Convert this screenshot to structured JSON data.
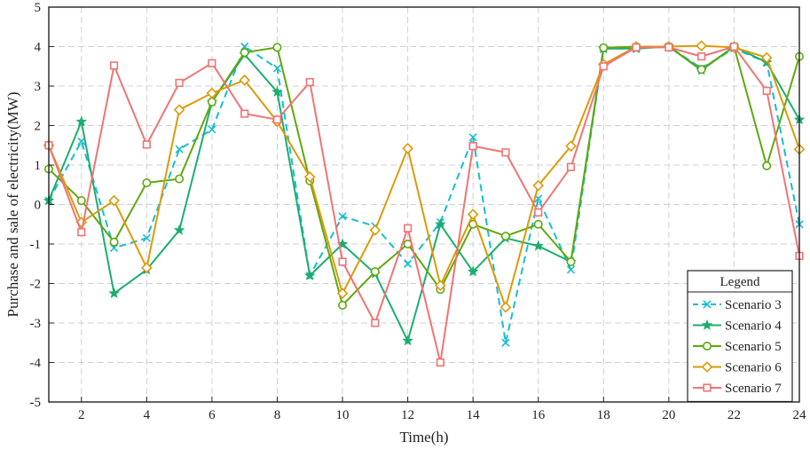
{
  "chart_data": {
    "type": "line",
    "title": "",
    "xlabel": "Time(h)",
    "ylabel": "Purchase and sale of electricity(MW)",
    "xlim": [
      1,
      24
    ],
    "ylim": [
      -5,
      5
    ],
    "xticks": [
      2,
      4,
      6,
      8,
      10,
      12,
      14,
      16,
      18,
      20,
      22,
      24
    ],
    "yticks": [
      -5,
      -4,
      -3,
      -2,
      -1,
      0,
      1,
      2,
      3,
      4,
      5
    ],
    "grid": true,
    "x": [
      1,
      2,
      3,
      4,
      5,
      6,
      7,
      8,
      9,
      10,
      11,
      12,
      13,
      14,
      15,
      16,
      17,
      18,
      19,
      20,
      21,
      22,
      23,
      24
    ],
    "legend": {
      "title": "Legend",
      "position": "bottom-right"
    },
    "series": [
      {
        "name": "Scenario 3",
        "color": "#17becf",
        "dash": "dashed",
        "marker": "x",
        "values": [
          0.1,
          1.6,
          -1.1,
          -0.85,
          1.4,
          1.9,
          4.0,
          3.45,
          -1.8,
          -0.3,
          -0.55,
          -1.5,
          -0.45,
          1.7,
          -3.5,
          0.15,
          -1.65,
          3.95,
          3.95,
          4.0,
          3.45,
          3.95,
          3.6,
          -0.5
        ]
      },
      {
        "name": "Scenario 4",
        "color": "#1cae6f",
        "dash": "solid",
        "marker": "star",
        "values": [
          0.1,
          2.1,
          -2.25,
          -1.65,
          -0.65,
          2.6,
          3.8,
          2.85,
          -1.8,
          -1.0,
          -1.75,
          -3.45,
          -0.5,
          -1.7,
          -0.85,
          -1.05,
          -1.45,
          3.95,
          3.95,
          4.0,
          3.4,
          4.0,
          3.6,
          2.15
        ]
      },
      {
        "name": "Scenario 5",
        "color": "#5fa80f",
        "dash": "solid",
        "marker": "circle",
        "values": [
          0.9,
          0.1,
          -0.95,
          0.55,
          0.65,
          2.6,
          3.85,
          3.98,
          0.6,
          -2.55,
          -1.7,
          -1.0,
          -2.15,
          -0.5,
          -0.8,
          -0.5,
          -1.45,
          3.97,
          4.0,
          4.0,
          3.42,
          4.0,
          0.98,
          3.75
        ]
      },
      {
        "name": "Scenario 6",
        "color": "#dc9a0a",
        "dash": "solid",
        "marker": "diamond",
        "values": [
          1.5,
          -0.45,
          0.1,
          -1.6,
          2.4,
          2.82,
          3.15,
          2.1,
          0.7,
          -2.25,
          -0.65,
          1.42,
          -2.05,
          -0.25,
          -2.6,
          0.48,
          1.48,
          3.55,
          4.0,
          4.0,
          4.02,
          3.98,
          3.72,
          1.4
        ]
      },
      {
        "name": "Scenario 7",
        "color": "#f07474",
        "dash": "solid",
        "marker": "square",
        "values": [
          1.5,
          -0.7,
          3.52,
          1.52,
          3.08,
          3.58,
          2.3,
          2.15,
          3.1,
          -1.45,
          -3.0,
          -0.6,
          -4.0,
          1.48,
          1.32,
          -0.2,
          0.95,
          3.5,
          3.98,
          3.98,
          3.75,
          4.0,
          2.88,
          -1.3
        ]
      }
    ]
  }
}
